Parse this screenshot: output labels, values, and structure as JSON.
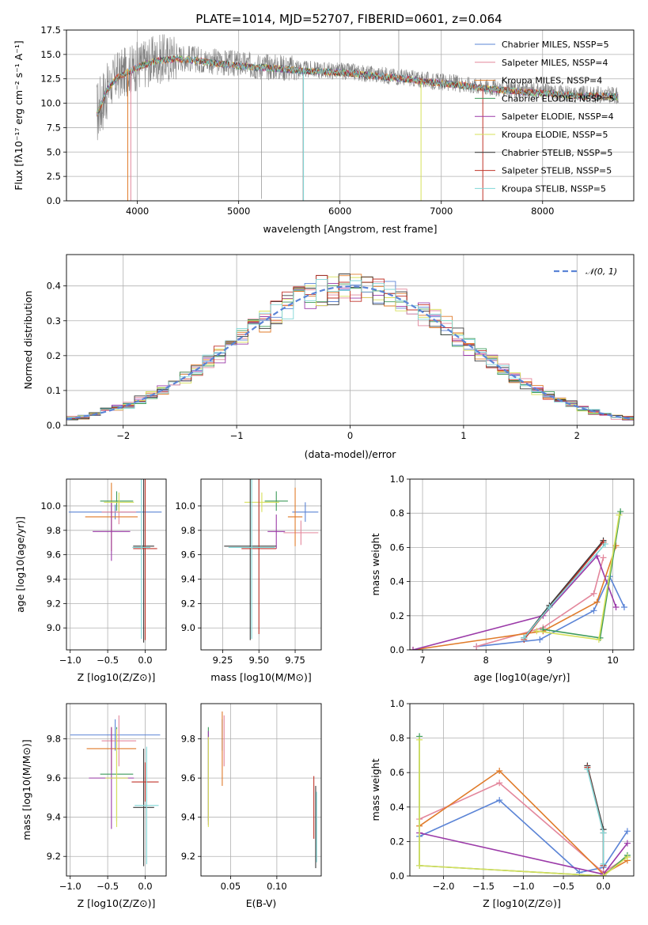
{
  "colors": {
    "chabrier_miles": "#5b84d6",
    "salpeter_miles": "#e3879c",
    "kroupa_miles": "#e07b2a",
    "chabrier_elodie": "#3c9a5a",
    "salpeter_elodie": "#9b3aa8",
    "kroupa_elodie": "#d7e05a",
    "chabrier_stelib": "#3a3a3a",
    "salpeter_stelib": "#c0342a",
    "kroupa_stelib": "#7fd6d6"
  },
  "chart_data": [
    {
      "id": "spectrum",
      "type": "line",
      "title": "PLATE=1014, MJD=52707, FIBERID=0601, z=0.064",
      "xlabel": "wavelength [Angstrom, rest frame]",
      "ylabel": "Flux [fλ10⁻¹⁷ erg cm⁻² s⁻¹ A⁻¹]",
      "xlim": [
        3300,
        8900
      ],
      "ylim": [
        0,
        17.5
      ],
      "xticks": [
        4000,
        5000,
        6000,
        7000,
        8000
      ],
      "yticks": [
        0.0,
        2.5,
        5.0,
        7.5,
        10.0,
        12.5,
        15.0,
        17.5
      ],
      "ytick_labels": [
        "0.0",
        "2.5",
        "5.0",
        "7.5",
        "10.0",
        "12.5",
        "15.0",
        "17.5"
      ],
      "legend_position": "top-right",
      "legend": [
        "Chabrier MILES, NSSP=5",
        "Salpeter MILES, NSSP=4",
        "Kroupa MILES, NSSP=4",
        "Chabrier ELODIE, NSSP=5",
        "Salpeter ELODIE, NSSP=4",
        "Kroupa ELODIE, NSSP=5",
        "Chabrier STELIB, NSSP=5",
        "Salpeter STELIB, NSSP=5",
        "Kroupa STELIB, NSSP=5"
      ],
      "data_envelope": {
        "x": [
          3600,
          3650,
          3700,
          3800,
          3900,
          4000,
          4100,
          4200,
          4300,
          4400,
          4500,
          4600,
          4800,
          5000,
          5200,
          5400,
          5600,
          5800,
          6000,
          6200,
          6400,
          6600,
          6800,
          7000,
          7200,
          7400,
          7600,
          7800,
          8000,
          8200,
          8400,
          8600,
          8750
        ],
        "y": [
          9.0,
          10.2,
          11.5,
          12.8,
          13.3,
          13.8,
          14.2,
          14.5,
          14.6,
          14.7,
          14.6,
          14.5,
          14.2,
          14.0,
          13.8,
          13.7,
          13.5,
          13.4,
          13.3,
          13.1,
          12.9,
          12.7,
          12.4,
          12.2,
          12.0,
          11.7,
          11.5,
          11.3,
          11.2,
          11.0,
          10.9,
          10.9,
          10.8
        ]
      }
    },
    {
      "id": "residuals",
      "type": "histogram",
      "xlabel": "(data-model)/error",
      "ylabel": "Normed distribution",
      "xlim": [
        -2.5,
        2.5
      ],
      "ylim": [
        0,
        0.49
      ],
      "xticks": [
        -2,
        -1,
        0,
        1,
        2
      ],
      "xtick_labels": [
        "−2",
        "−1",
        "0",
        "1",
        "2"
      ],
      "yticks": [
        0.0,
        0.1,
        0.2,
        0.3,
        0.4
      ],
      "ytick_labels": [
        "0.0",
        "0.1",
        "0.2",
        "0.3",
        "0.4"
      ],
      "legend_position": "top-right",
      "legend": [
        "𝒩(0, 1)"
      ],
      "gaussian": {
        "mean": 0,
        "sigma": 1
      }
    },
    {
      "id": "age_vs_Z",
      "type": "errorbar",
      "xlabel": "Z [log10(Z/Z⊙)]",
      "ylabel": "age [log10(age/yr)]",
      "xlim": [
        -1.05,
        0.28
      ],
      "ylim": [
        8.82,
        10.22
      ],
      "xticks": [
        -1.0,
        -0.5,
        0.0
      ],
      "xtick_labels": [
        "−1.0",
        "−0.5",
        "0.0"
      ],
      "yticks": [
        9.0,
        9.2,
        9.4,
        9.6,
        9.8,
        10.0
      ],
      "ytick_labels": [
        "9.0",
        "9.2",
        "9.4",
        "9.6",
        "9.8",
        "10.0"
      ],
      "points": [
        {
          "series": "chabrier_miles",
          "x": -0.4,
          "xerr": 0.62,
          "y": 9.95,
          "yerr": 0.06
        },
        {
          "series": "salpeter_miles",
          "x": -0.35,
          "xerr": 0.23,
          "y": 9.95,
          "yerr": 0.1
        },
        {
          "series": "kroupa_miles",
          "x": -0.45,
          "xerr": 0.35,
          "y": 9.91,
          "yerr": 0.28
        },
        {
          "series": "chabrier_elodie",
          "x": -0.38,
          "xerr": 0.22,
          "y": 10.04,
          "yerr": 0.08
        },
        {
          "series": "salpeter_elodie",
          "x": -0.45,
          "xerr": 0.25,
          "y": 9.79,
          "yerr": 0.24
        },
        {
          "series": "kroupa_elodie",
          "x": -0.35,
          "xerr": 0.2,
          "y": 10.03,
          "yerr": 0.08
        },
        {
          "series": "chabrier_stelib",
          "x": -0.02,
          "xerr": 0.14,
          "y": 9.67,
          "yerr": 0.79
        },
        {
          "series": "salpeter_stelib",
          "x": 0.0,
          "xerr": 0.16,
          "y": 9.65,
          "yerr": 0.75
        },
        {
          "series": "kroupa_stelib",
          "x": -0.05,
          "xerr": 0.12,
          "y": 9.66,
          "yerr": 0.75
        }
      ]
    },
    {
      "id": "age_vs_mass",
      "type": "errorbar",
      "xlabel": "mass [log10(M/M⊙)]",
      "ylabel": "",
      "xlim": [
        9.1,
        9.93
      ],
      "ylim": [
        8.82,
        10.22
      ],
      "xticks": [
        9.25,
        9.5,
        9.75
      ],
      "xtick_labels": [
        "9.25",
        "9.50",
        "9.75"
      ],
      "yticks": [
        9.0,
        9.2,
        9.4,
        9.6,
        9.8,
        10.0
      ],
      "ytick_labels": [
        "9.0",
        "9.2",
        "9.4",
        "9.6",
        "9.8",
        "10.0"
      ],
      "points": [
        {
          "series": "chabrier_miles",
          "x": 9.82,
          "xerr": 0.09,
          "y": 9.95,
          "yerr": 0.08
        },
        {
          "series": "salpeter_miles",
          "x": 9.79,
          "xerr": 0.12,
          "y": 9.78,
          "yerr": 0.1
        },
        {
          "series": "kroupa_miles",
          "x": 9.75,
          "xerr": 0.05,
          "y": 9.91,
          "yerr": 0.24
        },
        {
          "series": "chabrier_elodie",
          "x": 9.62,
          "xerr": 0.08,
          "y": 10.04,
          "yerr": 0.08
        },
        {
          "series": "salpeter_elodie",
          "x": 9.62,
          "xerr": 0.06,
          "y": 9.79,
          "yerr": 0.14
        },
        {
          "series": "kroupa_elodie",
          "x": 9.52,
          "xerr": 0.12,
          "y": 10.03,
          "yerr": 0.08
        },
        {
          "series": "chabrier_stelib",
          "x": 9.44,
          "xerr": 0.18,
          "y": 9.67,
          "yerr": 0.77
        },
        {
          "series": "salpeter_stelib",
          "x": 9.5,
          "xerr": 0.12,
          "y": 9.65,
          "yerr": 0.7
        },
        {
          "series": "kroupa_stelib",
          "x": 9.45,
          "xerr": 0.16,
          "y": 9.66,
          "yerr": 0.75
        }
      ]
    },
    {
      "id": "weight_vs_age",
      "type": "line",
      "xlabel": "age [log10(age/yr)]",
      "ylabel": "mass weight",
      "xlim": [
        6.8,
        10.33
      ],
      "ylim": [
        0,
        1.0
      ],
      "xticks": [
        7,
        8,
        9,
        10
      ],
      "xtick_labels": [
        "7",
        "8",
        "9",
        "10"
      ],
      "yticks": [
        0.0,
        0.2,
        0.4,
        0.6,
        0.8,
        1.0
      ],
      "ytick_labels": [
        "0.0",
        "0.2",
        "0.4",
        "0.6",
        "0.8",
        "1.0"
      ],
      "series": [
        {
          "series": "chabrier_miles",
          "x": [
            7.85,
            8.85,
            9.7,
            9.95,
            10.18
          ],
          "y": [
            0.02,
            0.06,
            0.23,
            0.43,
            0.25
          ]
        },
        {
          "series": "salpeter_miles",
          "x": [
            7.85,
            8.9,
            9.7,
            9.85
          ],
          "y": [
            0.02,
            0.13,
            0.33,
            0.54
          ]
        },
        {
          "series": "kroupa_miles",
          "x": [
            6.85,
            8.9,
            9.75,
            10.05
          ],
          "y": [
            0.0,
            0.11,
            0.28,
            0.61
          ]
        },
        {
          "series": "chabrier_elodie",
          "x": [
            8.9,
            9.8,
            10.12
          ],
          "y": [
            0.12,
            0.07,
            0.81
          ]
        },
        {
          "series": "salpeter_elodie",
          "x": [
            6.85,
            8.9,
            9.75,
            10.05
          ],
          "y": [
            0.0,
            0.2,
            0.55,
            0.25
          ]
        },
        {
          "series": "kroupa_elodie",
          "x": [
            8.8,
            9.78,
            10.1
          ],
          "y": [
            0.11,
            0.06,
            0.79
          ]
        },
        {
          "series": "chabrier_stelib",
          "x": [
            8.6,
            9.0,
            9.85
          ],
          "y": [
            0.07,
            0.26,
            0.64
          ]
        },
        {
          "series": "salpeter_stelib",
          "x": [
            8.6,
            9.0,
            9.85
          ],
          "y": [
            0.06,
            0.25,
            0.63
          ]
        },
        {
          "series": "kroupa_stelib",
          "x": [
            8.6,
            9.0,
            9.88
          ],
          "y": [
            0.07,
            0.25,
            0.62
          ]
        }
      ]
    },
    {
      "id": "mass_vs_Z",
      "type": "errorbar",
      "xlabel": "Z [log10(Z/Z⊙)]",
      "ylabel": "mass [log10(M/M⊙)]",
      "xlim": [
        -1.05,
        0.28
      ],
      "ylim": [
        9.1,
        9.98
      ],
      "xticks": [
        -1.0,
        -0.5,
        0.0
      ],
      "xtick_labels": [
        "−1.0",
        "−0.5",
        "0.0"
      ],
      "yticks": [
        9.2,
        9.4,
        9.6,
        9.8
      ],
      "ytick_labels": [
        "9.2",
        "9.4",
        "9.6",
        "9.8"
      ],
      "points": [
        {
          "series": "chabrier_miles",
          "x": -0.4,
          "xerr": 0.6,
          "y": 9.82,
          "yerr": 0.08
        },
        {
          "series": "salpeter_miles",
          "x": -0.35,
          "xerr": 0.23,
          "y": 9.79,
          "yerr": 0.13
        },
        {
          "series": "kroupa_miles",
          "x": -0.45,
          "xerr": 0.33,
          "y": 9.75,
          "yerr": 0.11
        },
        {
          "series": "chabrier_elodie",
          "x": -0.38,
          "xerr": 0.22,
          "y": 9.62,
          "yerr": 0.24
        },
        {
          "series": "salpeter_elodie",
          "x": -0.45,
          "xerr": 0.3,
          "y": 9.6,
          "yerr": 0.26
        },
        {
          "series": "kroupa_elodie",
          "x": -0.38,
          "xerr": 0.15,
          "y": 9.6,
          "yerr": 0.25
        },
        {
          "series": "chabrier_stelib",
          "x": -0.02,
          "xerr": 0.14,
          "y": 9.45,
          "yerr": 0.3
        },
        {
          "series": "salpeter_stelib",
          "x": 0.0,
          "xerr": 0.18,
          "y": 9.58,
          "yerr": 0.1
        },
        {
          "series": "kroupa_stelib",
          "x": 0.02,
          "xerr": 0.16,
          "y": 9.46,
          "yerr": 0.3
        }
      ]
    },
    {
      "id": "mass_vs_ebv",
      "type": "errorbar",
      "xlabel": "E(B-V)",
      "ylabel": "",
      "xlim": [
        0.018,
        0.148
      ],
      "ylim": [
        9.1,
        9.98
      ],
      "xticks": [
        0.05,
        0.1
      ],
      "xtick_labels": [
        "0.05",
        "0.10"
      ],
      "yticks": [
        9.2,
        9.4,
        9.6,
        9.8
      ],
      "ytick_labels": [
        "9.2",
        "9.4",
        "9.6",
        "9.8"
      ],
      "points": [
        {
          "series": "chabrier_miles",
          "x": 0.041,
          "xerr": 0.0,
          "y": 9.82,
          "yerr": 0.08
        },
        {
          "series": "salpeter_miles",
          "x": 0.043,
          "xerr": 0.0,
          "y": 9.79,
          "yerr": 0.13
        },
        {
          "series": "kroupa_miles",
          "x": 0.041,
          "xerr": 0.0,
          "y": 9.75,
          "yerr": 0.19
        },
        {
          "series": "chabrier_elodie",
          "x": 0.026,
          "xerr": 0.0,
          "y": 9.62,
          "yerr": 0.24
        },
        {
          "series": "salpeter_elodie",
          "x": 0.026,
          "xerr": 0.0,
          "y": 9.6,
          "yerr": 0.24
        },
        {
          "series": "kroupa_elodie",
          "x": 0.026,
          "xerr": 0.0,
          "y": 9.58,
          "yerr": 0.23
        },
        {
          "series": "chabrier_stelib",
          "x": 0.142,
          "xerr": 0.0,
          "y": 9.35,
          "yerr": 0.21
        },
        {
          "series": "salpeter_stelib",
          "x": 0.14,
          "xerr": 0.0,
          "y": 9.45,
          "yerr": 0.16
        },
        {
          "series": "kroupa_stelib",
          "x": 0.143,
          "xerr": 0.0,
          "y": 9.35,
          "yerr": 0.18
        }
      ]
    },
    {
      "id": "weight_vs_Z",
      "type": "line",
      "xlabel": "Z [log10(Z/Z⊙)]",
      "ylabel": "mass weight",
      "xlim": [
        -2.42,
        0.38
      ],
      "ylim": [
        0,
        1.0
      ],
      "xticks": [
        -2.0,
        -1.5,
        -1.0,
        -0.5,
        0.0
      ],
      "xtick_labels": [
        "−2.0",
        "−1.5",
        "−1.0",
        "−0.5",
        "0.0"
      ],
      "yticks": [
        0.0,
        0.2,
        0.4,
        0.6,
        0.8,
        1.0
      ],
      "ytick_labels": [
        "0.0",
        "0.2",
        "0.4",
        "0.6",
        "0.8",
        "1.0"
      ],
      "series": [
        {
          "series": "chabrier_miles",
          "x": [
            -2.3,
            -1.3,
            -0.3,
            0.0,
            0.3
          ],
          "y": [
            0.23,
            0.44,
            0.02,
            0.05,
            0.26
          ]
        },
        {
          "series": "salpeter_miles",
          "x": [
            -2.3,
            -1.3,
            0.0,
            0.3
          ],
          "y": [
            0.33,
            0.54,
            0.02,
            0.11
          ]
        },
        {
          "series": "kroupa_miles",
          "x": [
            -2.3,
            -1.3,
            0.0,
            0.3
          ],
          "y": [
            0.29,
            0.61,
            0.01,
            0.09
          ]
        },
        {
          "series": "chabrier_elodie",
          "x": [
            -2.3,
            -2.3,
            0.0,
            0.3
          ],
          "y": [
            0.81,
            0.06,
            0.0,
            0.12
          ]
        },
        {
          "series": "salpeter_elodie",
          "x": [
            -2.3,
            0.0,
            0.3
          ],
          "y": [
            0.25,
            0.01,
            0.19
          ]
        },
        {
          "series": "kroupa_elodie",
          "x": [
            -2.3,
            -2.3,
            0.0,
            0.3
          ],
          "y": [
            0.79,
            0.06,
            0.0,
            0.11
          ]
        },
        {
          "series": "chabrier_stelib",
          "x": [
            -0.2,
            0.0,
            0.0
          ],
          "y": [
            0.64,
            0.27,
            0.06
          ]
        },
        {
          "series": "salpeter_stelib",
          "x": [
            -0.2,
            0.0,
            0.0
          ],
          "y": [
            0.63,
            0.25,
            0.06
          ]
        },
        {
          "series": "kroupa_stelib",
          "x": [
            -0.2,
            0.0,
            0.0
          ],
          "y": [
            0.62,
            0.25,
            0.07
          ]
        }
      ]
    }
  ]
}
